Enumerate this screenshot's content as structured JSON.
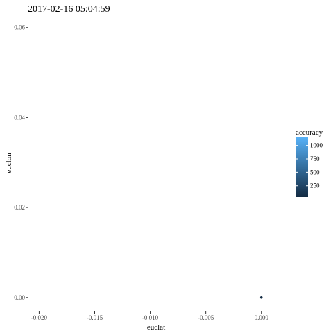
{
  "chart_data": {
    "type": "scatter",
    "title": "2017-02-16 05:04:59",
    "xlabel": "euclat",
    "ylabel": "euclon",
    "xlim": [
      -0.0209,
      0.0047
    ],
    "ylim": [
      -0.0025,
      0.0615
    ],
    "x_ticks": [
      {
        "value": -0.02,
        "label": "-0.020"
      },
      {
        "value": -0.015,
        "label": "-0.015"
      },
      {
        "value": -0.01,
        "label": "-0.010"
      },
      {
        "value": -0.005,
        "label": "-0.005"
      },
      {
        "value": 0.0,
        "label": "0.000"
      }
    ],
    "y_ticks": [
      {
        "value": 0.0,
        "label": "0.00"
      },
      {
        "value": 0.02,
        "label": "0.02"
      },
      {
        "value": 0.04,
        "label": "0.04"
      },
      {
        "value": 0.06,
        "label": "0.06"
      }
    ],
    "points": [
      {
        "x": 0.0,
        "y": 0.0,
        "accuracy": 40
      }
    ],
    "grid": false,
    "legend": {
      "title": "accuracy",
      "placement": "right",
      "range": [
        40,
        1150
      ],
      "ticks": [
        {
          "value": 250,
          "label": "250"
        },
        {
          "value": 500,
          "label": "500"
        },
        {
          "value": 750,
          "label": "750"
        },
        {
          "value": 1000,
          "label": "1000"
        }
      ],
      "color_low": "#132B43",
      "color_high": "#56B1F7"
    }
  }
}
